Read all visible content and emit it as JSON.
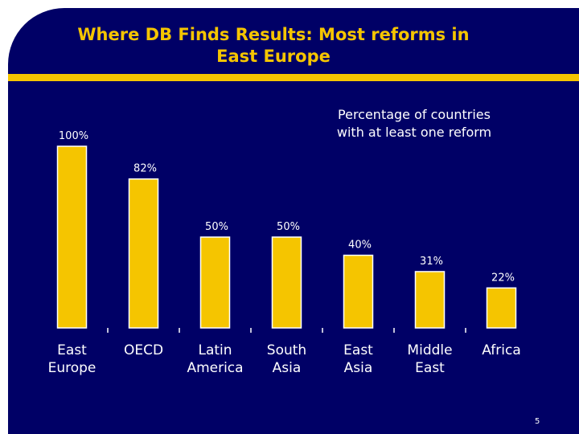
{
  "slide": {
    "title": "Where DB Finds Results:  Most reforms in\nEast Europe",
    "page_number": "5"
  },
  "colors": {
    "background": "#000066",
    "accent": "#f5c500",
    "text": "#ffffff"
  },
  "chart_data": {
    "type": "bar",
    "title": "Percentage of countries\nwith at least one reform",
    "categories": [
      "East\nEurope",
      "OECD",
      "Latin\nAmerica",
      "South\nAsia",
      "East\nAsia",
      "Middle\nEast",
      "Africa"
    ],
    "values": [
      100,
      82,
      50,
      50,
      40,
      31,
      22
    ],
    "data_labels": [
      "100%",
      "82%",
      "50%",
      "50%",
      "40%",
      "31%",
      "22%"
    ],
    "unit": "%",
    "ylim": [
      0,
      100
    ],
    "grid": false,
    "legend": "none"
  }
}
